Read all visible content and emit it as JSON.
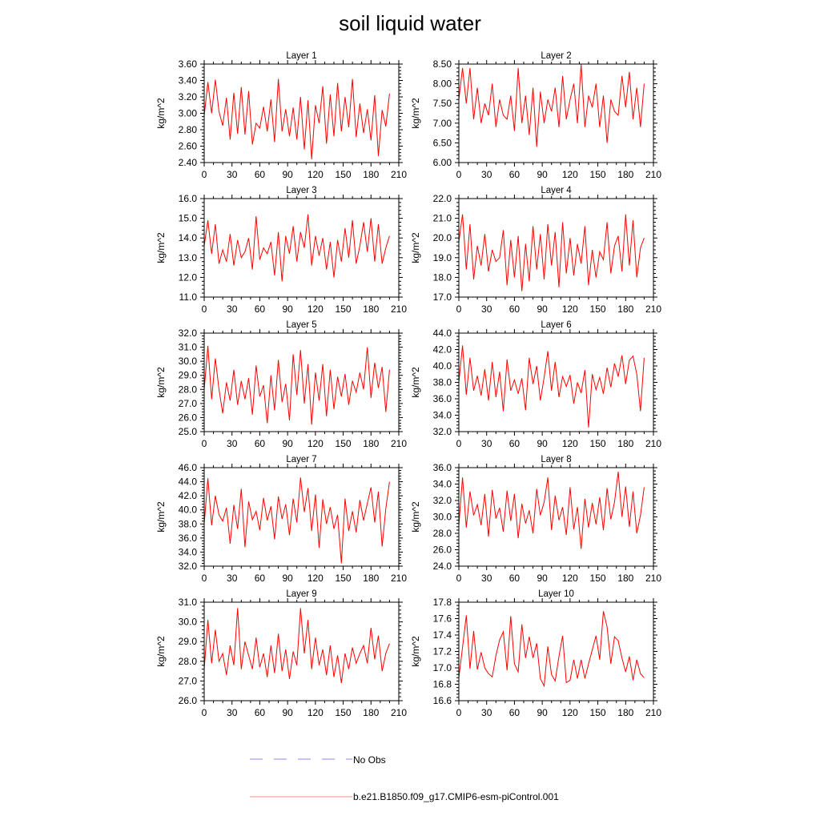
{
  "title": "soil liquid water",
  "legend": [
    {
      "label": "No Obs",
      "color": "#8888ff",
      "style": "dashed"
    },
    {
      "label": "b.e21.B1850.f09_g17.CMIP6-esm-piControl.001",
      "color": "#ff8888",
      "style": "solid"
    }
  ],
  "chart_data": [
    {
      "type": "line",
      "title": "Layer 1",
      "ylabel": "kg/m^2",
      "xlim": [
        0,
        210
      ],
      "xticks": [
        0,
        30,
        60,
        90,
        120,
        150,
        180,
        210
      ],
      "ylim": [
        2.4,
        3.6
      ],
      "ystep": 0.2,
      "decimals": 2,
      "x_step": 4,
      "color": "#ff0000",
      "values": [
        2.97,
        3.38,
        3.0,
        3.41,
        3.02,
        2.85,
        3.19,
        2.68,
        3.25,
        2.75,
        3.32,
        2.74,
        3.27,
        2.62,
        2.88,
        2.82,
        3.08,
        2.78,
        3.17,
        2.65,
        3.42,
        2.78,
        3.05,
        2.72,
        3.07,
        2.68,
        3.2,
        2.56,
        3.16,
        2.44,
        3.1,
        2.88,
        3.33,
        2.63,
        3.23,
        2.72,
        3.37,
        2.78,
        3.2,
        2.83,
        3.42,
        2.71,
        3.12,
        2.76,
        3.05,
        2.67,
        3.22,
        2.48,
        3.04,
        2.84,
        3.24
      ]
    },
    {
      "type": "line",
      "title": "Layer 2",
      "ylabel": "kg/m^2",
      "xlim": [
        0,
        210
      ],
      "xticks": [
        0,
        30,
        60,
        90,
        120,
        150,
        180,
        210
      ],
      "ylim": [
        6.0,
        8.5
      ],
      "ystep": 0.5,
      "decimals": 2,
      "x_step": 4,
      "color": "#ff0000",
      "values": [
        7.6,
        8.4,
        7.5,
        8.4,
        7.1,
        7.9,
        7.0,
        7.5,
        7.2,
        8.0,
        6.9,
        7.6,
        7.2,
        7.1,
        7.7,
        6.8,
        8.4,
        7.0,
        7.7,
        6.7,
        7.9,
        6.4,
        7.8,
        7.0,
        7.6,
        7.3,
        7.9,
        6.9,
        8.2,
        7.1,
        7.6,
        8.0,
        7.0,
        8.5,
        6.9,
        7.7,
        7.4,
        8.0,
        6.9,
        7.7,
        6.5,
        7.6,
        7.3,
        7.2,
        8.2,
        7.4,
        8.3,
        7.1,
        7.9,
        6.9,
        8.0
      ]
    },
    {
      "type": "line",
      "title": "Layer 3",
      "ylabel": "kg/m^2",
      "xlim": [
        0,
        210
      ],
      "xticks": [
        0,
        30,
        60,
        90,
        120,
        150,
        180,
        210
      ],
      "ylim": [
        11.0,
        16.0
      ],
      "ystep": 1,
      "decimals": 1,
      "x_step": 4,
      "color": "#ff0000",
      "values": [
        13.6,
        14.9,
        13.2,
        14.7,
        12.7,
        13.4,
        12.8,
        14.2,
        12.6,
        13.9,
        13.0,
        13.3,
        14.0,
        12.4,
        15.1,
        12.9,
        13.5,
        13.2,
        13.8,
        12.1,
        14.3,
        11.8,
        14.1,
        13.2,
        14.6,
        12.8,
        14.3,
        13.5,
        15.2,
        12.6,
        14.1,
        13.1,
        14.0,
        12.4,
        13.8,
        12.0,
        13.9,
        12.8,
        14.5,
        13.0,
        14.9,
        12.7,
        13.6,
        14.8,
        13.3,
        15.0,
        12.8,
        14.7,
        12.7,
        13.5,
        14.1
      ]
    },
    {
      "type": "line",
      "title": "Layer 4",
      "ylabel": "kg/m^2",
      "xlim": [
        0,
        210
      ],
      "xticks": [
        0,
        30,
        60,
        90,
        120,
        150,
        180,
        210
      ],
      "ylim": [
        17.0,
        22.0
      ],
      "ystep": 1,
      "decimals": 1,
      "x_step": 4,
      "color": "#ff0000",
      "values": [
        19.8,
        21.2,
        18.4,
        20.7,
        17.9,
        19.6,
        18.6,
        20.2,
        18.3,
        19.4,
        18.8,
        19.0,
        20.4,
        17.6,
        19.9,
        18.0,
        20.1,
        17.3,
        19.7,
        17.8,
        20.6,
        18.4,
        20.2,
        17.9,
        20.7,
        18.6,
        20.3,
        17.5,
        20.8,
        18.2,
        20.0,
        18.1,
        19.7,
        18.7,
        20.6,
        17.6,
        19.4,
        18.0,
        19.3,
        18.9,
        20.8,
        18.2,
        19.6,
        20.1,
        18.3,
        21.2,
        18.6,
        20.9,
        18.0,
        19.5,
        20.0
      ]
    },
    {
      "type": "line",
      "title": "Layer 5",
      "ylabel": "kg/m^2",
      "xlim": [
        0,
        210
      ],
      "xticks": [
        0,
        30,
        60,
        90,
        120,
        150,
        180,
        210
      ],
      "ylim": [
        25.0,
        32.0
      ],
      "ystep": 1,
      "decimals": 1,
      "x_step": 4,
      "color": "#ff0000",
      "values": [
        28.0,
        31.1,
        27.3,
        30.2,
        28.0,
        26.3,
        28.5,
        27.2,
        29.4,
        26.9,
        28.6,
        27.3,
        28.8,
        26.2,
        29.7,
        27.5,
        28.3,
        25.6,
        29.0,
        26.5,
        30.1,
        27.1,
        28.4,
        25.8,
        30.5,
        27.6,
        30.8,
        27.0,
        29.8,
        25.5,
        29.2,
        27.2,
        29.8,
        26.1,
        29.4,
        26.6,
        28.9,
        27.5,
        29.1,
        26.9,
        28.6,
        27.8,
        29.2,
        28.0,
        31.0,
        27.4,
        29.9,
        28.1,
        29.6,
        26.4,
        29.4
      ]
    },
    {
      "type": "line",
      "title": "Layer 6",
      "ylabel": "kg/m^2",
      "xlim": [
        0,
        210
      ],
      "xticks": [
        0,
        30,
        60,
        90,
        120,
        150,
        180,
        210
      ],
      "ylim": [
        32.0,
        44.0
      ],
      "ystep": 2,
      "decimals": 1,
      "x_step": 4,
      "color": "#ff0000",
      "values": [
        38.0,
        42.5,
        36.5,
        41.0,
        37.0,
        38.8,
        36.4,
        39.6,
        35.8,
        40.5,
        36.2,
        39.3,
        34.5,
        40.8,
        37.0,
        38.3,
        36.6,
        38.5,
        34.6,
        41.0,
        37.8,
        40.0,
        35.8,
        38.6,
        41.8,
        37.0,
        40.5,
        36.2,
        38.7,
        37.5,
        38.9,
        35.4,
        38.0,
        36.7,
        39.5,
        32.5,
        39.0,
        37.1,
        38.6,
        36.6,
        39.8,
        37.4,
        40.3,
        38.7,
        41.3,
        37.8,
        40.7,
        41.2,
        39.0,
        34.5,
        41.0
      ]
    },
    {
      "type": "line",
      "title": "Layer 7",
      "ylabel": "kg/m^2",
      "xlim": [
        0,
        210
      ],
      "xticks": [
        0,
        30,
        60,
        90,
        120,
        150,
        180,
        210
      ],
      "ylim": [
        32.0,
        46.0
      ],
      "ystep": 2,
      "decimals": 1,
      "x_step": 4,
      "color": "#ff0000",
      "values": [
        38.0,
        44.5,
        37.8,
        42.0,
        39.3,
        38.4,
        40.3,
        35.2,
        40.7,
        37.3,
        43.0,
        34.7,
        41.2,
        38.6,
        39.8,
        37.1,
        41.7,
        38.5,
        40.5,
        35.8,
        41.9,
        38.7,
        40.8,
        36.4,
        41.6,
        38.2,
        44.6,
        39.7,
        43.1,
        37.0,
        42.2,
        34.6,
        41.5,
        38.0,
        40.4,
        37.3,
        39.3,
        32.4,
        41.6,
        37.0,
        39.8,
        36.8,
        41.4,
        38.5,
        40.9,
        43.2,
        38.2,
        42.6,
        34.8,
        40.2,
        44.0
      ]
    },
    {
      "type": "line",
      "title": "Layer 8",
      "ylabel": "kg/m^2",
      "xlim": [
        0,
        210
      ],
      "xticks": [
        0,
        30,
        60,
        90,
        120,
        150,
        180,
        210
      ],
      "ylim": [
        24.0,
        36.0
      ],
      "ystep": 2,
      "decimals": 1,
      "x_step": 4,
      "color": "#ff0000",
      "values": [
        29.0,
        34.8,
        28.7,
        33.1,
        30.2,
        31.5,
        29.0,
        32.8,
        27.6,
        33.3,
        29.8,
        31.1,
        28.2,
        33.2,
        29.5,
        32.8,
        27.4,
        31.6,
        29.2,
        30.8,
        28.0,
        33.4,
        30.2,
        31.8,
        34.8,
        28.4,
        32.6,
        29.6,
        31.2,
        27.8,
        33.6,
        28.5,
        31.2,
        26.1,
        32.2,
        28.7,
        31.7,
        29.1,
        32.4,
        28.4,
        33.5,
        29.7,
        31.8,
        35.5,
        30.0,
        33.7,
        28.8,
        33.1,
        28.0,
        30.2,
        33.6
      ]
    },
    {
      "type": "line",
      "title": "Layer 9",
      "ylabel": "kg/m^2",
      "xlim": [
        0,
        210
      ],
      "xticks": [
        0,
        30,
        60,
        90,
        120,
        150,
        180,
        210
      ],
      "ylim": [
        26.0,
        31.0
      ],
      "ystep": 1,
      "decimals": 1,
      "x_step": 4,
      "color": "#ff0000",
      "values": [
        27.6,
        30.1,
        27.9,
        29.6,
        28.0,
        28.4,
        27.3,
        28.8,
        27.8,
        30.7,
        27.6,
        29.0,
        28.3,
        27.6,
        29.2,
        27.7,
        28.4,
        27.2,
        28.8,
        27.4,
        29.4,
        27.5,
        28.6,
        27.1,
        28.5,
        27.8,
        30.7,
        28.4,
        30.1,
        27.6,
        29.2,
        27.8,
        28.6,
        27.3,
        28.8,
        27.2,
        28.3,
        26.9,
        28.4,
        27.6,
        28.7,
        27.9,
        28.4,
        28.8,
        27.9,
        29.7,
        28.1,
        29.3,
        27.5,
        28.4,
        28.9
      ]
    },
    {
      "type": "line",
      "title": "Layer 10",
      "ylabel": "kg/m^2",
      "xlim": [
        0,
        210
      ],
      "xticks": [
        0,
        30,
        60,
        90,
        120,
        150,
        180,
        210
      ],
      "ylim": [
        16.6,
        17.8
      ],
      "ystep": 0.2,
      "decimals": 1,
      "x_step": 4,
      "color": "#ff0000",
      "values": [
        16.88,
        17.25,
        17.64,
        16.99,
        17.45,
        16.98,
        17.19,
        17.0,
        16.93,
        16.89,
        17.15,
        17.34,
        17.44,
        16.97,
        17.63,
        17.05,
        16.95,
        17.53,
        17.12,
        17.38,
        17.12,
        17.3,
        16.87,
        16.78,
        17.26,
        16.92,
        16.84,
        17.14,
        17.39,
        16.82,
        16.85,
        17.1,
        16.87,
        17.1,
        16.87,
        17.05,
        17.22,
        17.39,
        17.1,
        17.69,
        17.5,
        17.05,
        17.38,
        17.33,
        17.12,
        16.95,
        17.14,
        16.85,
        17.1,
        16.93,
        16.88
      ]
    }
  ]
}
